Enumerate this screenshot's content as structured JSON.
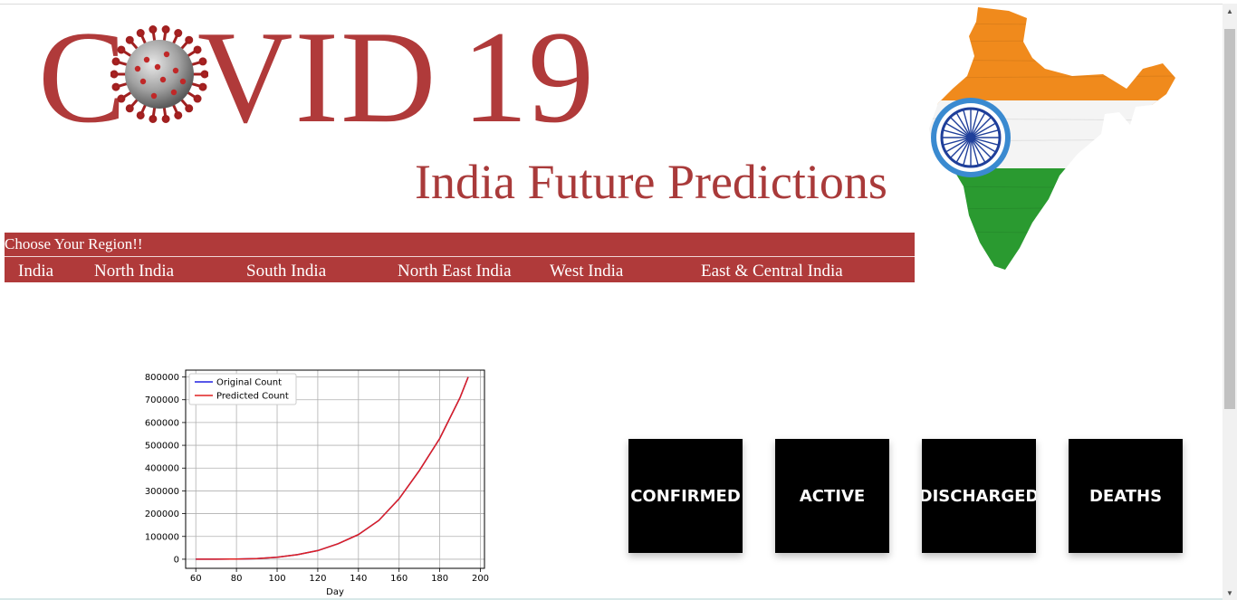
{
  "logo": {
    "letter_c": "C",
    "letters_vid": "VID",
    "number": "19",
    "color": "#b03a3a"
  },
  "subtitle": "India Future Predictions",
  "region_menu": {
    "heading": "Choose Your Region!!",
    "items": [
      "India",
      "North India",
      "South India",
      "North East India",
      "West India",
      "East & Central India"
    ],
    "background": "#b03a3a"
  },
  "stats": {
    "cards": [
      "CONFIRMED",
      "ACTIVE",
      "DISCHARGED",
      "DEATHS"
    ]
  },
  "chart_data": {
    "type": "line",
    "xlabel": "Day",
    "ylabel": "",
    "xlim": [
      55,
      202
    ],
    "ylim": [
      -40000,
      830000
    ],
    "x_ticks": [
      60,
      80,
      100,
      120,
      140,
      160,
      180,
      200
    ],
    "y_ticks": [
      0,
      100000,
      200000,
      300000,
      400000,
      500000,
      600000,
      700000,
      800000
    ],
    "grid": true,
    "legend_position": "upper-left",
    "series": [
      {
        "name": "Original Count",
        "color": "#2020e0",
        "x": [
          60,
          70,
          80,
          90,
          100,
          110,
          120,
          130,
          140,
          150,
          160,
          170,
          180,
          190,
          194
        ],
        "y": [
          0,
          0,
          1000,
          3000,
          9000,
          20000,
          38000,
          68000,
          108000,
          170000,
          265000,
          390000,
          530000,
          710000,
          800000
        ]
      },
      {
        "name": "Predicted Count",
        "color": "#e02020",
        "x": [
          60,
          70,
          80,
          90,
          100,
          110,
          120,
          130,
          140,
          150,
          160,
          170,
          180,
          190,
          194
        ],
        "y": [
          0,
          0,
          1000,
          3000,
          9000,
          20000,
          38000,
          68000,
          108000,
          170000,
          265000,
          390000,
          530000,
          710000,
          800000
        ]
      }
    ]
  }
}
